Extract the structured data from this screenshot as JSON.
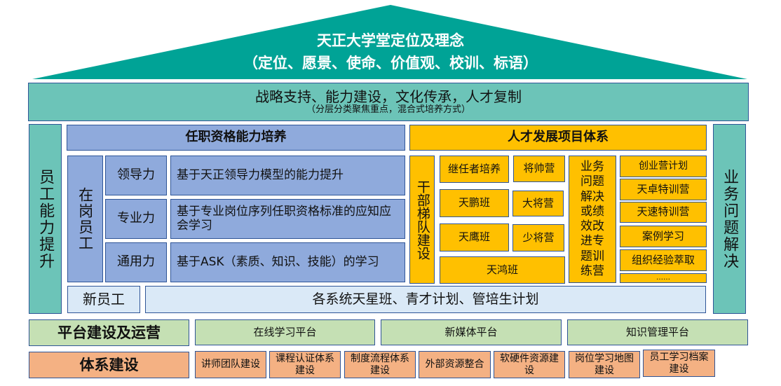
{
  "roof": {
    "title": "天正大学堂定位及理念",
    "subtitle": "（定位、愿景、使命、价值观、校训、标语）",
    "color": "#00a396"
  },
  "band": {
    "title": "战略支持、能力建设，文化传承，人才复制",
    "subtitle": "（分层分类聚焦重点，混合式培养方式）"
  },
  "left_pillar": "员工能力提升",
  "right_pillar": "业务问题解决",
  "qualification": {
    "header": "任职资格能力培养",
    "group": "在岗员工",
    "rows": [
      {
        "label": "领导力",
        "desc": "基于天正领导力模型的能力提升"
      },
      {
        "label": "专业力",
        "desc": "基于专业岗位序列任职资格标准的应知应会学习"
      },
      {
        "label": "通用力",
        "desc": "基于ASK（素质、知识、技能）的学习"
      }
    ],
    "new_label": "新员工",
    "new_desc": "各系统天星班、青才计划、管培生计划"
  },
  "talent": {
    "header": "人才发展项目体系",
    "cadre": "干部梯队建设",
    "items": [
      "继任者培养",
      "将帅营",
      "天鹏班",
      "大将营",
      "天鹰班",
      "少将营",
      "天鸿班"
    ],
    "business": "业务问题解决或绩效改进专题训练营",
    "list": [
      "创业营计划",
      "天卓特训营",
      "天速特训营",
      "案例学习",
      "组织经验萃取",
      "……"
    ]
  },
  "platform": {
    "label": "平台建设及运营",
    "items": [
      "在线学习平台",
      "新媒体平台",
      "知识管理平台"
    ]
  },
  "system": {
    "label": "体系建设",
    "items": [
      "讲师团队建设",
      "课程认证体系建设",
      "制度流程体系建设",
      "外部资源整合",
      "软硬件资源建设",
      "岗位学习地图建设",
      "员工学习档案建设"
    ]
  }
}
